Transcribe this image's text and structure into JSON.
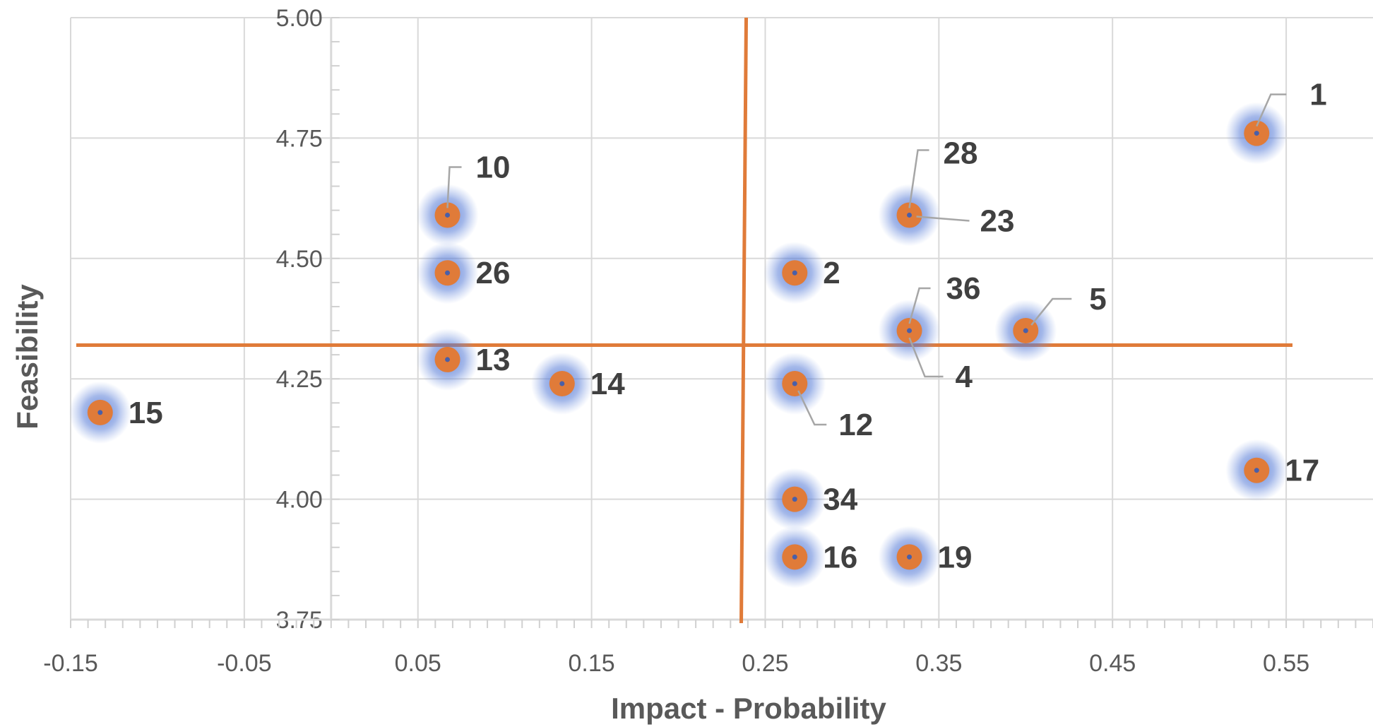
{
  "chart_data": {
    "type": "scatter",
    "title": "",
    "xlabel": "Impact - Probability",
    "ylabel": "Feasibility",
    "xlim": [
      -0.15,
      0.6
    ],
    "ylim": [
      3.75,
      5.0
    ],
    "x_ticks": [
      -0.15,
      -0.05,
      0.05,
      0.15,
      0.25,
      0.35,
      0.45,
      0.55
    ],
    "x_tick_labels": [
      "-0.15",
      "-0.05",
      "0.05",
      "0.15",
      "0.25",
      "0.35",
      "0.45",
      "0.55"
    ],
    "y_ticks": [
      3.75,
      4.0,
      4.25,
      4.5,
      4.75,
      5.0
    ],
    "y_tick_labels": [
      "3.75",
      "4.00",
      "4.25",
      "4.50",
      "4.75",
      "5.00"
    ],
    "grid": true,
    "y_axis_crosses_x_at": 0,
    "quadrant_lines": {
      "x": 0.237,
      "y": 4.32,
      "color": "#e07b39"
    },
    "marker_color": "#e07b39",
    "glow_color": "#4a6fd0",
    "points": [
      {
        "label": "1",
        "x": 0.533,
        "y": 4.76
      },
      {
        "label": "28",
        "x": 0.333,
        "y": 4.59
      },
      {
        "label": "23",
        "x": 0.333,
        "y": 4.59
      },
      {
        "label": "10",
        "x": 0.067,
        "y": 4.59
      },
      {
        "label": "26",
        "x": 0.067,
        "y": 4.47
      },
      {
        "label": "2",
        "x": 0.267,
        "y": 4.47
      },
      {
        "label": "36",
        "x": 0.333,
        "y": 4.35
      },
      {
        "label": "4",
        "x": 0.333,
        "y": 4.35
      },
      {
        "label": "5",
        "x": 0.4,
        "y": 4.35
      },
      {
        "label": "13",
        "x": 0.067,
        "y": 4.29
      },
      {
        "label": "14",
        "x": 0.133,
        "y": 4.24
      },
      {
        "label": "12",
        "x": 0.267,
        "y": 4.24
      },
      {
        "label": "15",
        "x": -0.133,
        "y": 4.18
      },
      {
        "label": "17",
        "x": 0.533,
        "y": 4.06
      },
      {
        "label": "34",
        "x": 0.267,
        "y": 4.0
      },
      {
        "label": "16",
        "x": 0.267,
        "y": 3.88
      },
      {
        "label": "19",
        "x": 0.333,
        "y": 3.88
      }
    ]
  }
}
